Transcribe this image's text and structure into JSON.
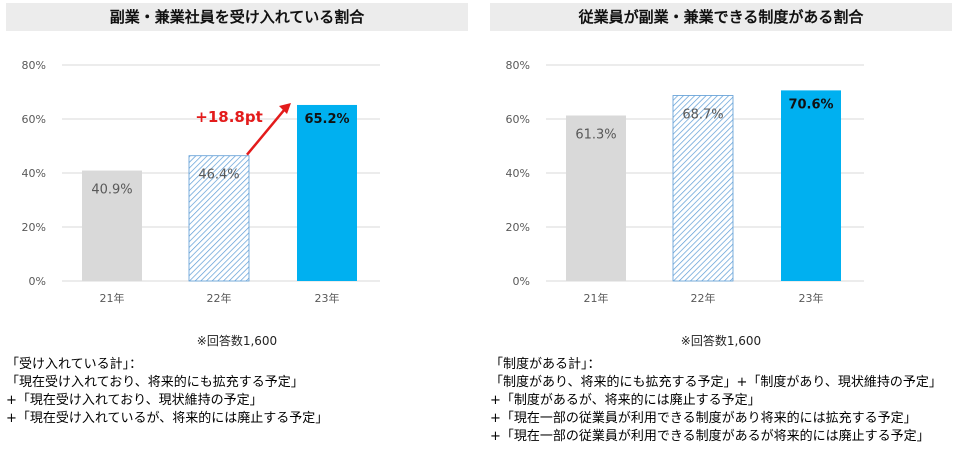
{
  "colors": {
    "bar_21": "#d9d9d9",
    "bar_22_hatch": "#5b9bd5",
    "bar_23": "#00b0f0",
    "arrow": "#e31b1b",
    "axis_text": "#595959",
    "gridline": "#d9d9d9",
    "title_bg": "#ececec"
  },
  "chart_data": [
    {
      "type": "bar",
      "title": "副業・兼業社員を受け入れている割合",
      "categories": [
        "21年",
        "22年",
        "23年"
      ],
      "values": [
        40.9,
        46.4,
        65.2
      ],
      "value_labels": [
        "40.9%",
        "46.4%",
        "65.2%"
      ],
      "ylim": [
        0,
        80
      ],
      "yticks": [
        "0%",
        "20%",
        "40%",
        "60%",
        "80%"
      ],
      "grid": true,
      "annotation": "+18.8pt",
      "note": "※回答数1,600",
      "definition": [
        "「受け入れている計」：",
        "「現在受け入れており、将来的にも拡充する予定」",
        "+「現在受け入れており、現状維持の予定」",
        "+「現在受け入れているが、将来的には廃止する予定」"
      ]
    },
    {
      "type": "bar",
      "title": "従業員が副業・兼業できる制度がある割合",
      "categories": [
        "21年",
        "22年",
        "23年"
      ],
      "values": [
        61.3,
        68.7,
        70.6
      ],
      "value_labels": [
        "61.3%",
        "68.7%",
        "70.6%"
      ],
      "ylim": [
        0,
        80
      ],
      "yticks": [
        "0%",
        "20%",
        "40%",
        "60%",
        "80%"
      ],
      "grid": true,
      "note": "※回答数1,600",
      "definition": [
        "「制度がある計」：",
        "「制度があり、将来的にも拡充する予定」+「制度があり、現状維持の予定」",
        "+「制度があるが、将来的には廃止する予定」",
        "+「現在一部の従業員が利用できる制度があり将来的には拡充する予定」",
        "+「現在一部の従業員が利用できる制度があるが将来的には廃止する予定」"
      ]
    }
  ]
}
